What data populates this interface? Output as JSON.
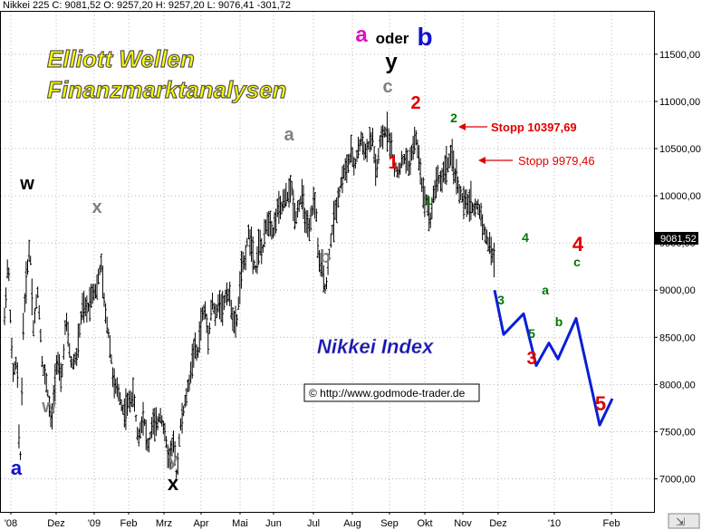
{
  "header": "Nikkei 225 C: 9081,52 O: 9257,20 H: 9257,20 L: 9076,41 -301,72",
  "title_line1": "Elliott Wellen",
  "title_line2": "Finanzmarktanalysen",
  "index_label": "Nikkei Index",
  "copyright": "© http://www.godmode-trader.de",
  "price_label": "9081,52",
  "stop_label_1": "Stopp 10397,69",
  "stop_label_2": "Stopp 9979,46",
  "colors": {
    "price_bars": "#000000",
    "projection": "#0a1fd6",
    "red": "#e00000",
    "green": "#007700",
    "gray": "#808080",
    "blue": "#1010d0",
    "magenta": "#e010c0",
    "title_yellow": "#ffff00",
    "index_blue": "#1010c0",
    "grid": "#b8b8b8"
  },
  "chart_data": {
    "type": "line",
    "yaxis": {
      "position": "right",
      "ylim": [
        6650,
        11950
      ],
      "ticks": [
        7000,
        7500,
        8000,
        8500,
        9000,
        9500,
        10000,
        10500,
        11000,
        11500
      ],
      "tick_labels": [
        "7000,00",
        "7500,00",
        "8000,00",
        "8500,00",
        "9000,00",
        "9500,00",
        "10000,00",
        "10500,00",
        "11000,00",
        "11500,00"
      ]
    },
    "xaxis": {
      "tick_labels": [
        "'08",
        "Dez",
        "'09",
        "Feb",
        "Mrz",
        "Apr",
        "Mai",
        "Jun",
        "Jul",
        "Aug",
        "Sep",
        "Okt",
        "Nov",
        "Dez",
        "'10",
        "Feb"
      ]
    },
    "grid": true,
    "price_path": [
      [
        0,
        8700
      ],
      [
        4,
        9350
      ],
      [
        9,
        8100
      ],
      [
        14,
        8250
      ],
      [
        17,
        7000
      ],
      [
        21,
        8700
      ],
      [
        25,
        9200
      ],
      [
        28,
        9500
      ],
      [
        32,
        8600
      ],
      [
        37,
        9000
      ],
      [
        42,
        8200
      ],
      [
        47,
        8000
      ],
      [
        52,
        7550
      ],
      [
        58,
        8300
      ],
      [
        63,
        8000
      ],
      [
        68,
        8700
      ],
      [
        74,
        8200
      ],
      [
        80,
        8300
      ],
      [
        86,
        8800
      ],
      [
        92,
        8800
      ],
      [
        98,
        9000
      ],
      [
        102,
        9000
      ],
      [
        107,
        9300
      ],
      [
        111,
        8800
      ],
      [
        116,
        8500
      ],
      [
        121,
        8000
      ],
      [
        127,
        7900
      ],
      [
        132,
        7700
      ],
      [
        137,
        7800
      ],
      [
        143,
        7900
      ],
      [
        148,
        7400
      ],
      [
        154,
        7700
      ],
      [
        159,
        7300
      ],
      [
        164,
        7600
      ],
      [
        168,
        7550
      ],
      [
        173,
        7700
      ],
      [
        178,
        7450
      ],
      [
        182,
        7200
      ],
      [
        187,
        7400
      ],
      [
        191,
        7000
      ],
      [
        194,
        7500
      ],
      [
        198,
        7700
      ],
      [
        202,
        7900
      ],
      [
        206,
        8100
      ],
      [
        210,
        8400
      ],
      [
        214,
        8300
      ],
      [
        218,
        8700
      ],
      [
        222,
        8800
      ],
      [
        226,
        8500
      ],
      [
        230,
        8900
      ],
      [
        234,
        8700
      ],
      [
        238,
        8900
      ],
      [
        242,
        8800
      ],
      [
        246,
        9000
      ],
      [
        250,
        8900
      ],
      [
        255,
        8600
      ],
      [
        258,
        8700
      ],
      [
        262,
        9200
      ],
      [
        266,
        9300
      ],
      [
        270,
        9600
      ],
      [
        274,
        9500
      ],
      [
        278,
        9200
      ],
      [
        282,
        9500
      ],
      [
        286,
        9400
      ],
      [
        290,
        9700
      ],
      [
        294,
        9750
      ],
      [
        298,
        9600
      ],
      [
        302,
        9850
      ],
      [
        306,
        9850
      ],
      [
        310,
        9950
      ],
      [
        314,
        10000
      ],
      [
        318,
        10100
      ],
      [
        322,
        9750
      ],
      [
        326,
        9900
      ],
      [
        330,
        10000
      ],
      [
        334,
        9700
      ],
      [
        338,
        9600
      ],
      [
        342,
        9950
      ],
      [
        345,
        9900
      ],
      [
        348,
        9300
      ],
      [
        352,
        9200
      ],
      [
        356,
        9000
      ],
      [
        360,
        9400
      ],
      [
        364,
        9700
      ],
      [
        368,
        9900
      ],
      [
        372,
        10100
      ],
      [
        376,
        10250
      ],
      [
        380,
        10300
      ],
      [
        384,
        10450
      ],
      [
        388,
        10300
      ],
      [
        392,
        10500
      ],
      [
        396,
        10600
      ],
      [
        400,
        10450
      ],
      [
        404,
        10550
      ],
      [
        408,
        10600
      ],
      [
        412,
        10200
      ],
      [
        416,
        10550
      ],
      [
        420,
        10650
      ],
      [
        424,
        10700
      ],
      [
        428,
        10550
      ],
      [
        432,
        10300
      ],
      [
        436,
        10250
      ],
      [
        440,
        10350
      ],
      [
        444,
        10400
      ],
      [
        448,
        10300
      ],
      [
        452,
        10500
      ],
      [
        456,
        10600
      ],
      [
        460,
        10350
      ],
      [
        464,
        10000
      ],
      [
        468,
        9950
      ],
      [
        472,
        9750
      ],
      [
        476,
        10050
      ],
      [
        480,
        10200
      ],
      [
        484,
        10150
      ],
      [
        488,
        10300
      ],
      [
        492,
        10350
      ],
      [
        496,
        10400
      ],
      [
        500,
        10200
      ],
      [
        504,
        10050
      ],
      [
        508,
        9950
      ],
      [
        512,
        9900
      ],
      [
        516,
        9950
      ],
      [
        520,
        9850
      ],
      [
        524,
        9900
      ],
      [
        528,
        9800
      ],
      [
        532,
        9600
      ],
      [
        536,
        9500
      ],
      [
        540,
        9400
      ],
      [
        543,
        9300
      ]
    ],
    "projection": [
      [
        9000,
        8530,
        8750,
        8200,
        8440,
        8270,
        8700,
        7570,
        7850
      ]
    ],
    "wave_labels": [
      {
        "text": "a",
        "color_key": "blue",
        "size": 22
      },
      {
        "text": "w",
        "color_key": "price_bars",
        "size": 20
      },
      {
        "text": "x",
        "color_key": "gray",
        "size": 20
      },
      {
        "text": "w",
        "color_key": "gray",
        "size": 20
      },
      {
        "text": "y",
        "color_key": "gray",
        "size": 20
      },
      {
        "text": "x",
        "color_key": "price_bars",
        "size": 22
      },
      {
        "text": "a",
        "color_key": "gray",
        "size": 20
      },
      {
        "text": "b",
        "color_key": "gray",
        "size": 20
      },
      {
        "text": "c",
        "color_key": "gray",
        "size": 20
      },
      {
        "text": "y",
        "color_key": "price_bars",
        "size": 24
      },
      {
        "text": "a",
        "color_key": "magenta",
        "size": 24
      },
      {
        "text": "oder",
        "color_key": "price_bars",
        "size": 17
      },
      {
        "text": "b",
        "color_key": "blue",
        "size": 28
      },
      {
        "text": "2",
        "color_key": "red",
        "size": 20
      },
      {
        "text": "1",
        "color_key": "red",
        "size": 20
      },
      {
        "text": "2",
        "color_key": "green",
        "size": 14
      },
      {
        "text": "1",
        "color_key": "green",
        "size": 14
      },
      {
        "text": "3",
        "color_key": "green",
        "size": 14
      },
      {
        "text": "4",
        "color_key": "green",
        "size": 14
      },
      {
        "text": "5",
        "color_key": "green",
        "size": 14
      },
      {
        "text": "a",
        "color_key": "green",
        "size": 14
      },
      {
        "text": "b",
        "color_key": "green",
        "size": 14
      },
      {
        "text": "c",
        "color_key": "green",
        "size": 14
      },
      {
        "text": "3",
        "color_key": "red",
        "size": 20
      },
      {
        "text": "4",
        "color_key": "red",
        "size": 22
      },
      {
        "text": "5",
        "color_key": "red",
        "size": 22
      }
    ]
  }
}
